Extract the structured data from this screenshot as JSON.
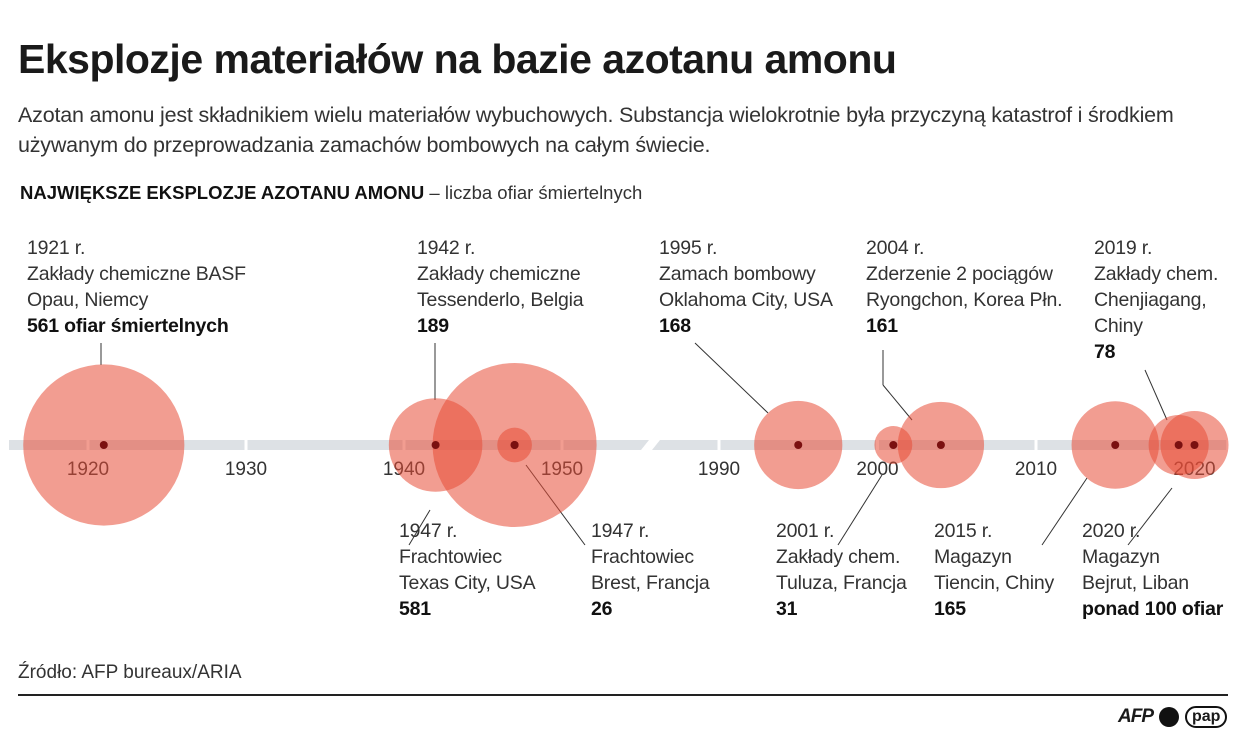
{
  "header": {
    "title": "Eksplozje materiałów na bazie azotanu amonu",
    "subtitle": "Azotan amonu jest składnikiem wielu materiałów wybuchowych. Substancja wielokrotnie była przyczyną katastrof i środkiem używanym do przeprowadzania zamachów bombowych na całym świecie.",
    "section_bold": "NAJWIĘKSZE EKSPLOZJE AZOTANU AMONU",
    "section_rest": " – liczba ofiar śmiertelnych"
  },
  "colors": {
    "bubble": "#e84c37",
    "dot": "#7a1010",
    "axis": "#dde1e5"
  },
  "chart_data": {
    "type": "bubble-timeline",
    "x_axis": {
      "segments": [
        [
          1915,
          1952
        ],
        [
          1986,
          2022
        ]
      ],
      "ticks": [
        1920,
        1930,
        1940,
        1950,
        1990,
        2000,
        2010,
        2020
      ],
      "break": "1952-1986"
    },
    "size_encodes": "liczba ofiar śmiertelnych",
    "events": [
      {
        "year": 1921,
        "value": 561,
        "lines": [
          "1921 r.",
          "Zakłady chemiczne BASF",
          "Opau, Niemcy"
        ],
        "value_label": "561 ofiar śmiertelnych"
      },
      {
        "year": 1942,
        "value": 189,
        "lines": [
          "1942 r.",
          "Zakłady chemiczne",
          "Tessenderlo, Belgia"
        ],
        "value_label": "189"
      },
      {
        "year": 1947,
        "value": 581,
        "lines": [
          "1947 r.",
          "Frachtowiec",
          "Texas City, USA"
        ],
        "value_label": "581"
      },
      {
        "year": 1947,
        "value": 26,
        "lines": [
          "1947 r.",
          "Frachtowiec",
          "Brest, Francja"
        ],
        "value_label": "26"
      },
      {
        "year": 1995,
        "value": 168,
        "lines": [
          "1995 r.",
          "Zamach bombowy",
          "Oklahoma City, USA"
        ],
        "value_label": "168"
      },
      {
        "year": 2001,
        "value": 31,
        "lines": [
          "2001 r.",
          "Zakłady chem.",
          "Tuluza, Francja"
        ],
        "value_label": "31"
      },
      {
        "year": 2004,
        "value": 161,
        "lines": [
          "2004 r.",
          "Zderzenie 2 pociągów",
          "Ryongchon, Korea Płn."
        ],
        "value_label": "161"
      },
      {
        "year": 2015,
        "value": 165,
        "lines": [
          "2015 r.",
          "Magazyn",
          "Tiencin, Chiny"
        ],
        "value_label": "165"
      },
      {
        "year": 2019,
        "value": 78,
        "lines": [
          "2019 r.",
          "Zakłady chem.",
          "Chenjiagang,",
          "Chiny"
        ],
        "value_label": "78"
      },
      {
        "year": 2020,
        "value": 100,
        "lines": [
          "2020 r.",
          "Magazyn",
          "Bejrut, Liban"
        ],
        "value_label": "ponad 100 ofiar"
      }
    ]
  },
  "footer": {
    "source": "Źródło: AFP bureaux/ARIA",
    "logo_afp": "AFP",
    "logo_pap": "pap"
  }
}
